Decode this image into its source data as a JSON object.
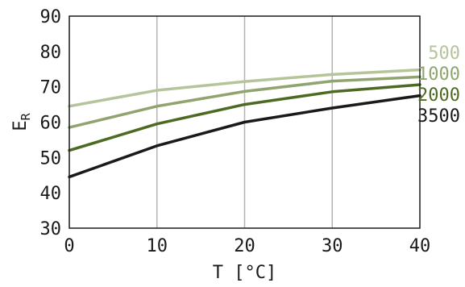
{
  "chart_data": {
    "type": "line",
    "xlabel": "T [°C]",
    "ylabel_main": "E",
    "ylabel_sub": "R",
    "xlim": [
      0,
      40
    ],
    "ylim": [
      30,
      90
    ],
    "x": [
      0,
      10,
      20,
      30,
      40
    ],
    "x_ticks": [
      "0",
      "10",
      "20",
      "30",
      "40"
    ],
    "y_ticks": [
      "30",
      "40",
      "50",
      "60",
      "70",
      "80",
      "90"
    ],
    "grid": "vertical",
    "legend_position": "right",
    "series": [
      {
        "name": "500",
        "color": "#b5c49a",
        "values": [
          64.5,
          69.0,
          71.5,
          73.5,
          74.8
        ]
      },
      {
        "name": "1000",
        "color": "#8fa46e",
        "values": [
          58.5,
          64.5,
          68.7,
          71.6,
          72.8
        ]
      },
      {
        "name": "2000",
        "color": "#4d6a22",
        "values": [
          52.0,
          59.5,
          65.0,
          68.6,
          70.6
        ]
      },
      {
        "name": "3500",
        "color": "#1a1a1a",
        "values": [
          44.5,
          53.3,
          60.0,
          64.0,
          67.5
        ]
      }
    ]
  }
}
